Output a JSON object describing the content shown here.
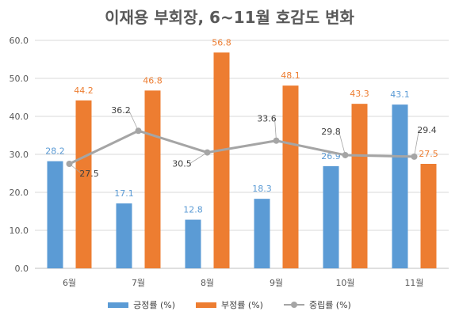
{
  "chart_data": {
    "type": "bar",
    "title": "이재용 부회장, 6~11월 호감도 변화",
    "categories": [
      "6월",
      "7월",
      "8월",
      "9월",
      "10월",
      "11월"
    ],
    "ylim": [
      0,
      60
    ],
    "yticks": [
      "0.0",
      "10.0",
      "20.0",
      "30.0",
      "40.0",
      "50.0",
      "60.0"
    ],
    "grid": true,
    "legend_position": "bottom",
    "series": [
      {
        "name": "긍정률 (%)",
        "kind": "bar",
        "color": "#5b9bd5",
        "values": [
          28.2,
          17.1,
          12.8,
          18.3,
          26.9,
          43.1
        ],
        "labels": [
          "28.2",
          "17.1",
          "12.8",
          "18.3",
          "26.9",
          "43.1"
        ]
      },
      {
        "name": "부정률 (%)",
        "kind": "bar",
        "color": "#ed7d31",
        "values": [
          44.2,
          46.8,
          56.8,
          48.1,
          43.3,
          27.5
        ],
        "labels": [
          "44.2",
          "46.8",
          "56.8",
          "48.1",
          "43.3",
          "27.5"
        ]
      },
      {
        "name": "중립률 (%)",
        "kind": "line",
        "color": "#a5a5a5",
        "values": [
          27.5,
          36.2,
          30.5,
          33.6,
          29.8,
          29.4
        ],
        "labels": [
          "27.5",
          "36.2",
          "30.5",
          "33.6",
          "29.8",
          "29.4"
        ]
      }
    ]
  }
}
